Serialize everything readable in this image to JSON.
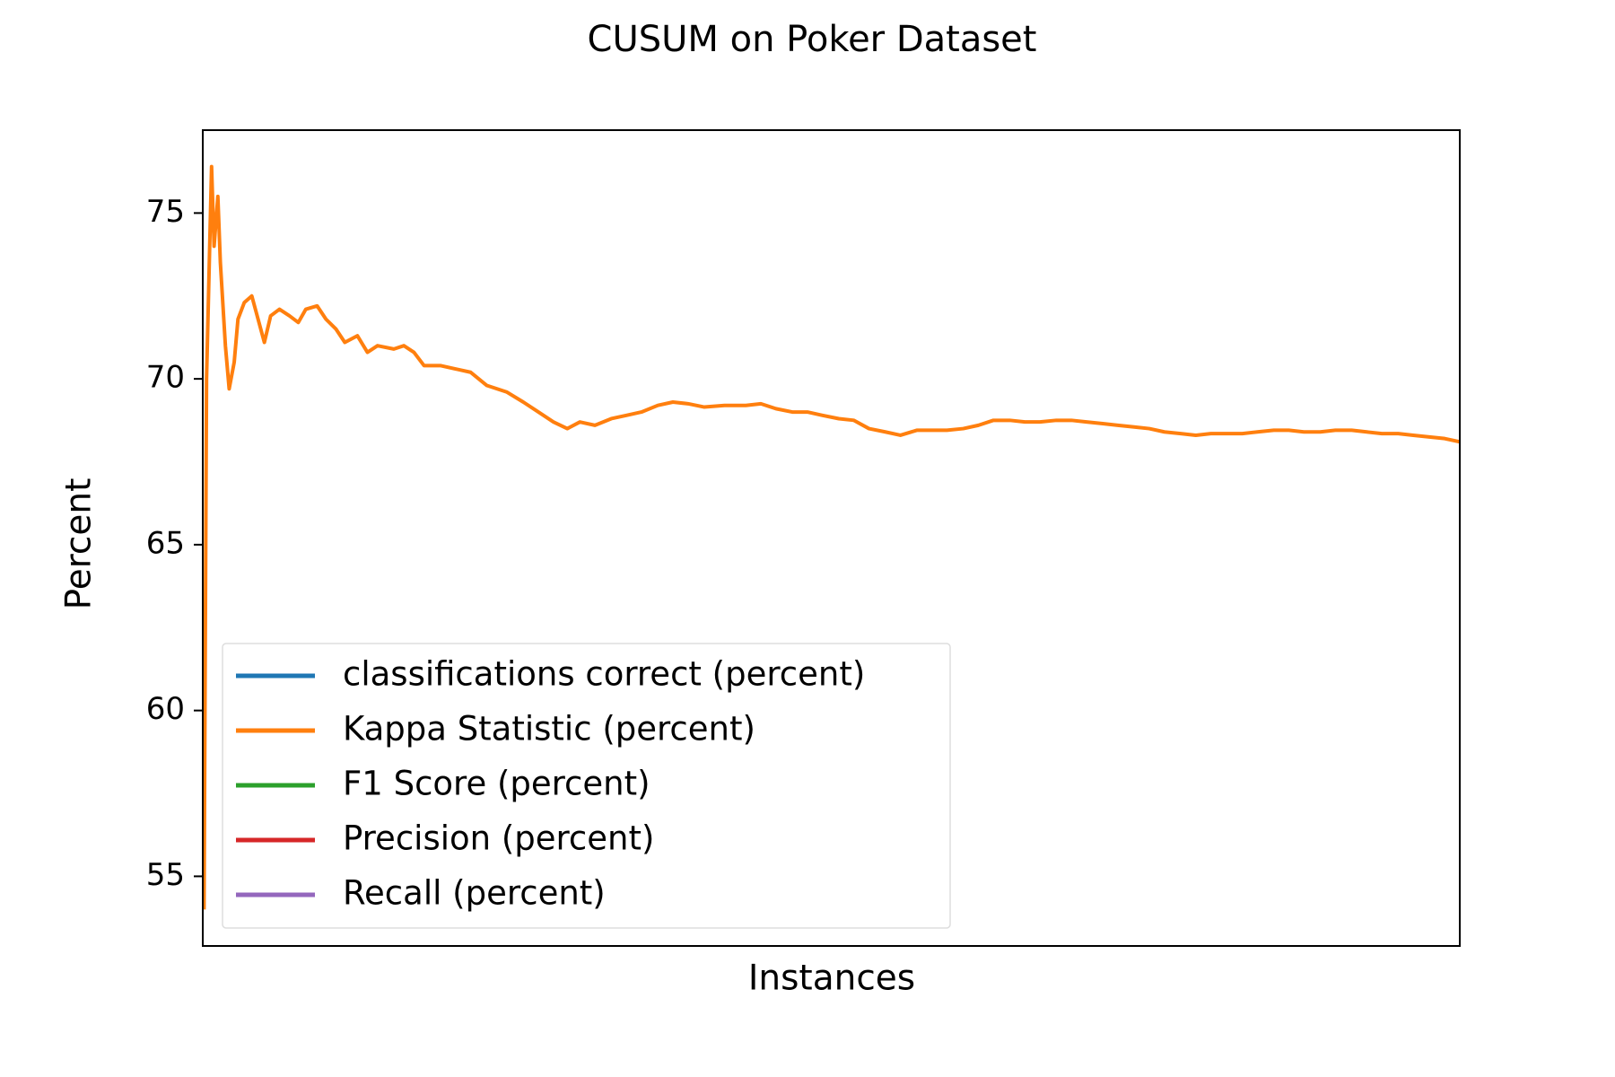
{
  "chart_data": {
    "type": "line",
    "title": "CUSUM on Poker Dataset",
    "xlabel": "Instances",
    "ylabel": "Percent",
    "xlim": [
      0,
      1
    ],
    "ylim": [
      52.9,
      77.5
    ],
    "yticks": [
      55,
      60,
      65,
      70,
      75
    ],
    "grid": false,
    "legend": "lower left",
    "x": [
      0.001,
      0.003,
      0.007,
      0.009,
      0.012,
      0.014,
      0.018,
      0.021,
      0.025,
      0.028,
      0.033,
      0.039,
      0.044,
      0.049,
      0.054,
      0.061,
      0.069,
      0.076,
      0.082,
      0.091,
      0.098,
      0.106,
      0.113,
      0.123,
      0.131,
      0.139,
      0.152,
      0.16,
      0.168,
      0.176,
      0.189,
      0.201,
      0.213,
      0.226,
      0.242,
      0.255,
      0.267,
      0.279,
      0.29,
      0.3,
      0.312,
      0.325,
      0.337,
      0.349,
      0.362,
      0.374,
      0.386,
      0.399,
      0.415,
      0.432,
      0.444,
      0.456,
      0.469,
      0.481,
      0.493,
      0.506,
      0.518,
      0.53,
      0.543,
      0.555,
      0.568,
      0.58,
      0.592,
      0.605,
      0.617,
      0.629,
      0.642,
      0.654,
      0.666,
      0.679,
      0.691,
      0.703,
      0.716,
      0.728,
      0.741,
      0.753,
      0.765,
      0.778,
      0.79,
      0.802,
      0.815,
      0.827,
      0.839,
      0.852,
      0.864,
      0.876,
      0.889,
      0.901,
      0.914,
      0.926,
      0.938,
      0.951,
      0.963,
      0.975,
      0.988,
      1
    ],
    "series": [
      {
        "name": "classifications correct (percent)",
        "color": "#1f77b4",
        "values": [
          null,
          null,
          null,
          null,
          null,
          null,
          null,
          null,
          null,
          null,
          null,
          null,
          null,
          null,
          null,
          null,
          null,
          null,
          null,
          null,
          null,
          null,
          null,
          null,
          null,
          null,
          null,
          null,
          null,
          null,
          null,
          null,
          null,
          null,
          null,
          null,
          null,
          null,
          null,
          null,
          null,
          null,
          null,
          null,
          null,
          null,
          null,
          null,
          null,
          null,
          null,
          null,
          null,
          null,
          null,
          null,
          null,
          null,
          null,
          null,
          null,
          null,
          null,
          null,
          null,
          null,
          null,
          null,
          null,
          null,
          null,
          null,
          null,
          null,
          null,
          null,
          null,
          null,
          null,
          null,
          null,
          null,
          null,
          null,
          null,
          null,
          null,
          null,
          null,
          null,
          null,
          null,
          null,
          null,
          null,
          null
        ]
      },
      {
        "name": "Kappa Statistic (percent)",
        "color": "#ff7f0e",
        "values": [
          54,
          70,
          76.4,
          74,
          75.5,
          73.5,
          71,
          69.7,
          70.5,
          71.8,
          72.3,
          72.5,
          71.8,
          71.1,
          71.9,
          72.1,
          71.9,
          71.7,
          72.1,
          72.2,
          71.8,
          71.5,
          71.1,
          71.3,
          70.8,
          71.0,
          70.9,
          71.0,
          70.8,
          70.4,
          70.4,
          70.3,
          70.2,
          69.8,
          69.6,
          69.3,
          69.0,
          68.7,
          68.5,
          68.7,
          68.6,
          68.8,
          68.9,
          69.0,
          69.2,
          69.3,
          69.25,
          69.15,
          69.2,
          69.2,
          69.25,
          69.1,
          69.0,
          69.0,
          68.9,
          68.8,
          68.75,
          68.5,
          68.4,
          68.3,
          68.45,
          68.45,
          68.45,
          68.5,
          68.6,
          68.75,
          68.75,
          68.7,
          68.7,
          68.75,
          68.75,
          68.7,
          68.65,
          68.6,
          68.55,
          68.5,
          68.4,
          68.35,
          68.3,
          68.35,
          68.35,
          68.35,
          68.4,
          68.45,
          68.45,
          68.4,
          68.4,
          68.45,
          68.45,
          68.4,
          68.35,
          68.35,
          68.3,
          68.25,
          68.2,
          68.1
        ]
      },
      {
        "name": "F1 Score (percent)",
        "color": "#2ca02c",
        "values": [
          null,
          null,
          null,
          null,
          null,
          null,
          null,
          null,
          null,
          null,
          null,
          null,
          null,
          null,
          null,
          null,
          null,
          null,
          null,
          null,
          null,
          null,
          null,
          null,
          null,
          null,
          null,
          null,
          null,
          null,
          null,
          null,
          null,
          null,
          null,
          null,
          null,
          null,
          null,
          null,
          null,
          null,
          null,
          null,
          null,
          null,
          null,
          null,
          null,
          null,
          null,
          null,
          null,
          null,
          null,
          null,
          null,
          null,
          null,
          null,
          null,
          null,
          null,
          null,
          null,
          null,
          null,
          null,
          null,
          null,
          null,
          null,
          null,
          null,
          null,
          null,
          null,
          null,
          null,
          null,
          null,
          null,
          null,
          null,
          null,
          null,
          null,
          null,
          null,
          null,
          null,
          null,
          null,
          null,
          null,
          null
        ]
      },
      {
        "name": "Precision (percent)",
        "color": "#d62728",
        "values": [
          null,
          null,
          null,
          null,
          null,
          null,
          null,
          null,
          null,
          null,
          null,
          null,
          null,
          null,
          null,
          null,
          null,
          null,
          null,
          null,
          null,
          null,
          null,
          null,
          null,
          null,
          null,
          null,
          null,
          null,
          null,
          null,
          null,
          null,
          null,
          null,
          null,
          null,
          null,
          null,
          null,
          null,
          null,
          null,
          null,
          null,
          null,
          null,
          null,
          null,
          null,
          null,
          null,
          null,
          null,
          null,
          null,
          null,
          null,
          null,
          null,
          null,
          null,
          null,
          null,
          null,
          null,
          null,
          null,
          null,
          null,
          null,
          null,
          null,
          null,
          null,
          null,
          null,
          null,
          null,
          null,
          null,
          null,
          null,
          null,
          null,
          null,
          null,
          null,
          null,
          null,
          null,
          null,
          null,
          null,
          null
        ]
      },
      {
        "name": "Recall (percent)",
        "color": "#9467bd",
        "values": [
          null,
          null,
          null,
          null,
          null,
          null,
          null,
          null,
          null,
          null,
          null,
          null,
          null,
          null,
          null,
          null,
          null,
          null,
          null,
          null,
          null,
          null,
          null,
          null,
          null,
          null,
          null,
          null,
          null,
          null,
          null,
          null,
          null,
          null,
          null,
          null,
          null,
          null,
          null,
          null,
          null,
          null,
          null,
          null,
          null,
          null,
          null,
          null,
          null,
          null,
          null,
          null,
          null,
          null,
          null,
          null,
          null,
          null,
          null,
          null,
          null,
          null,
          null,
          null,
          null,
          null,
          null,
          null,
          null,
          null,
          null,
          null,
          null,
          null,
          null,
          null,
          null,
          null,
          null,
          null,
          null,
          null,
          null,
          null,
          null,
          null,
          null,
          null,
          null,
          null,
          null,
          null,
          null,
          null,
          null,
          null
        ]
      }
    ]
  }
}
